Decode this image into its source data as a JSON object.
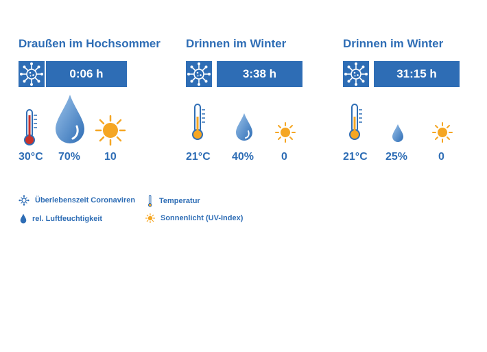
{
  "colors": {
    "accent": "#2e6db5",
    "sun": "#f5a623",
    "thermometer_red": "#c8322c"
  },
  "panels": [
    {
      "title": "Draußen im Hochsommer",
      "time": "0:06 h",
      "temperature": "30°C",
      "humidity": "70%",
      "uv": "10"
    },
    {
      "title": "Drinnen im Winter",
      "time": "3:38 h",
      "temperature": "21°C",
      "humidity": "40%",
      "uv": "0"
    },
    {
      "title": "Drinnen im Winter",
      "time": "31:15 h",
      "temperature": "21°C",
      "humidity": "25%",
      "uv": "0"
    }
  ],
  "legend": {
    "virus": "Überlebenszeit Coronaviren",
    "temperature": "Temperatur",
    "humidity": "rel. Luftfeuchtigkeit",
    "sunlight": "Sonnenlicht (UV-Index)"
  },
  "icons": [
    "virus-icon",
    "thermometer-icon",
    "water-drop-icon",
    "sun-icon"
  ]
}
